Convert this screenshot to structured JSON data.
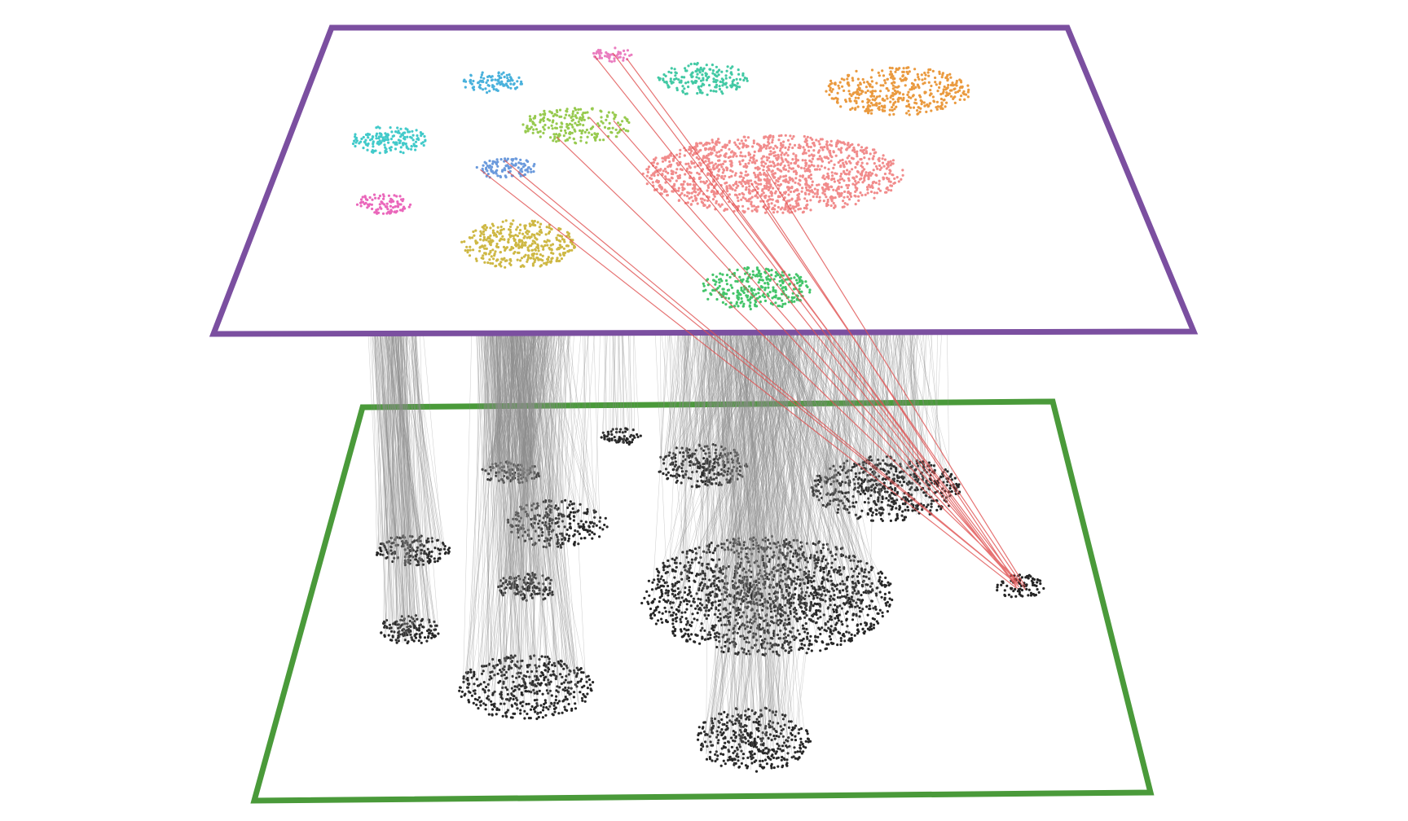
{
  "figure": {
    "type": "two-layer cluster correspondence diagram",
    "upper_layer": {
      "frame_color": "#7b4fa0",
      "point_colors": [
        "#2ec4c4",
        "#e857b4",
        "#35a8d8",
        "#e86fb9",
        "#2ec39a",
        "#8cc43c",
        "#e88f2a",
        "#5b8fd8",
        "#f08080",
        "#c9b030",
        "#2fbf5a"
      ]
    },
    "lower_layer": {
      "frame_color": "#4a9a3a",
      "point_color": "#000000"
    },
    "links": {
      "normal_color": "#8c8c8c",
      "highlight_color": "#e05050"
    }
  }
}
